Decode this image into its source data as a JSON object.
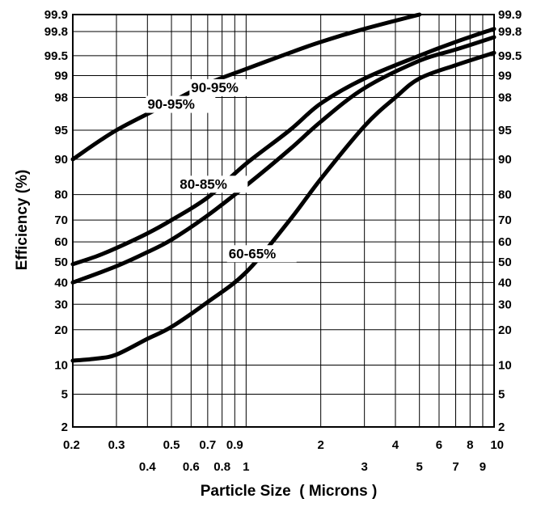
{
  "chart_data": {
    "type": "line",
    "title": "",
    "xlabel": "Particle Size  ( Microns )",
    "ylabel": "Efficiency (%)",
    "x_scale": "log",
    "y_scale": "probability",
    "xlim": [
      0.2,
      10
    ],
    "ylim": [
      2,
      99.9
    ],
    "grid": true,
    "x_ticks_top": [
      "0.2",
      "0.3",
      "0.5",
      "0.7",
      "0.9",
      "2",
      "4",
      "6",
      "8",
      "10"
    ],
    "x_ticks_bottom": [
      "0.4",
      "0.6",
      "0.8",
      "1",
      "3",
      "5",
      "7",
      "9"
    ],
    "y_ticks": [
      "99.9",
      "99.8",
      "99.5",
      "99",
      "98",
      "95",
      "90",
      "80",
      "70",
      "60",
      "50",
      "40",
      "30",
      "20",
      "10",
      "5",
      "2"
    ],
    "series": [
      {
        "name": "90-95%",
        "x": [
          0.2,
          0.3,
          0.5,
          0.7,
          1,
          1.5,
          2,
          3,
          5
        ],
        "y": [
          90,
          95,
          97.7,
          98.7,
          99.2,
          99.55,
          99.7,
          99.82,
          99.9
        ]
      },
      {
        "name": "90-95%",
        "x": [
          0.2,
          0.25,
          0.3,
          0.4,
          0.5,
          0.7,
          1,
          1.5,
          2,
          3,
          5,
          7,
          10
        ],
        "y": [
          49,
          53,
          57,
          64,
          70,
          79,
          89,
          95,
          97.6,
          98.9,
          99.5,
          99.7,
          99.82
        ]
      },
      {
        "name": "80-85%",
        "x": [
          0.2,
          0.3,
          0.4,
          0.5,
          0.7,
          1,
          1.5,
          2,
          3,
          5,
          7,
          10
        ],
        "y": [
          40,
          48,
          55,
          61,
          72,
          83,
          92,
          96,
          98.5,
          99.4,
          99.6,
          99.75
        ]
      },
      {
        "name": "60-65%",
        "x": [
          0.2,
          0.25,
          0.3,
          0.4,
          0.5,
          0.7,
          1,
          1.5,
          2,
          3,
          4,
          5,
          7,
          10
        ],
        "y": [
          11,
          11.5,
          12.5,
          17,
          21,
          31,
          45,
          70,
          85,
          95.5,
          98,
          98.9,
          99.3,
          99.55
        ]
      }
    ]
  }
}
